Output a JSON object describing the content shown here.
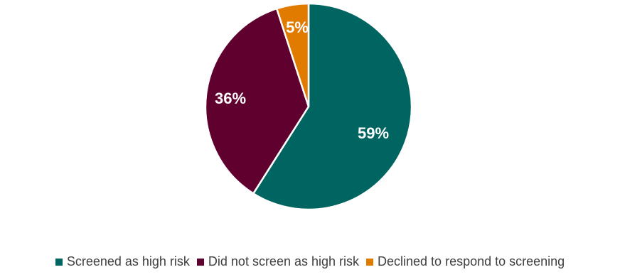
{
  "chart_data": {
    "type": "pie",
    "title": "",
    "categories": [
      "Screened as high risk",
      "Did not screen as high risk",
      "Declined to respond to screening"
    ],
    "values": [
      59,
      36,
      5
    ],
    "labels": [
      "59%",
      "36%",
      "5%"
    ],
    "colors": [
      "#006460",
      "#5f002e",
      "#e07b00"
    ],
    "start_angle_deg": 0,
    "direction": "clockwise",
    "legend_position": "bottom"
  }
}
